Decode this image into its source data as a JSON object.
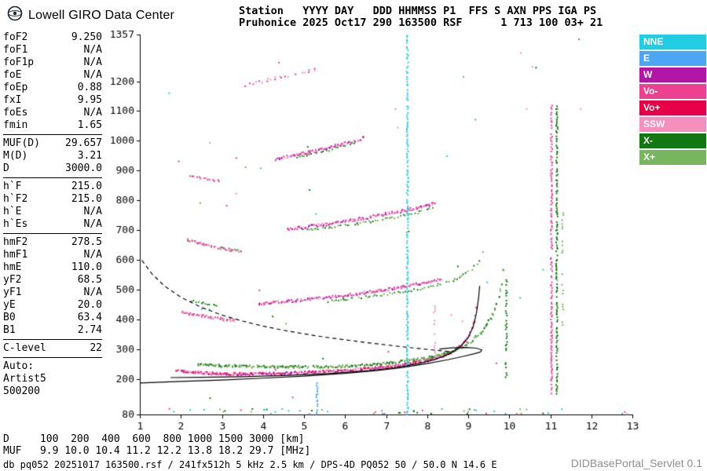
{
  "header": {
    "brand": "Lowell GIRO Data Center",
    "station_line1": "Station   YYYY DAY   DDD HHMMSS P1  FFS S AXN PPS IGA PS",
    "station_line2": "Pruhonice 2025 Oct17 290 163500 RSF      1 713 100 03+ 21"
  },
  "params": {
    "groups": [
      {
        "rows": [
          [
            "foF2",
            "9.250"
          ],
          [
            "foF1",
            "N/A"
          ],
          [
            "foF1p",
            "N/A"
          ],
          [
            "foE",
            "N/A"
          ],
          [
            "foEp",
            "0.88"
          ],
          [
            "fxI",
            "9.95"
          ],
          [
            "foEs",
            "N/A"
          ],
          [
            "fmin",
            "1.65"
          ]
        ]
      },
      {
        "rows": [
          [
            "MUF(D)",
            "29.657"
          ],
          [
            "M(D)",
            "3.21"
          ],
          [
            "D",
            "3000.0"
          ]
        ]
      },
      {
        "rows": [
          [
            "h`F",
            "215.0"
          ],
          [
            "h`F2",
            "215.0"
          ],
          [
            "h`E",
            "N/A"
          ],
          [
            "h`Es",
            "N/A"
          ]
        ]
      },
      {
        "rows": [
          [
            "hmF2",
            "278.5"
          ],
          [
            "hmF1",
            "N/A"
          ],
          [
            "hmE",
            "110.0"
          ],
          [
            "yF2",
            "68.5"
          ],
          [
            "yF1",
            "N/A"
          ],
          [
            "yE",
            "20.0"
          ],
          [
            "B0",
            "63.4"
          ],
          [
            "B1",
            "2.74"
          ]
        ]
      },
      {
        "rows": [
          [
            "C-level",
            "22"
          ]
        ]
      }
    ],
    "auto_label": "Auto:",
    "auto_lines": [
      "Artist5",
      "500200"
    ]
  },
  "legend": {
    "items": [
      {
        "label": "NNE",
        "color": "#22CCE2"
      },
      {
        "label": "E",
        "color": "#4DA6F5"
      },
      {
        "label": "W",
        "color": "#B215A8"
      },
      {
        "label": "Vo-",
        "color": "#EE4090"
      },
      {
        "label": "Vo+",
        "color": "#E60045"
      },
      {
        "label": "SSW",
        "color": "#F78FBE"
      },
      {
        "label": "X-",
        "color": "#117711"
      },
      {
        "label": "X+",
        "color": "#77B55F"
      }
    ]
  },
  "chart_data": {
    "type": "scatter",
    "x_unit": "MHz",
    "y_unit": "km",
    "xlim": [
      1,
      13
    ],
    "ylim": [
      80,
      1357
    ],
    "x_ticks": [
      1,
      2,
      3,
      4,
      5,
      6,
      7,
      8,
      9,
      10,
      11,
      12,
      13
    ],
    "y_ticks": [
      1357,
      1200,
      1100,
      1000,
      900,
      800,
      700,
      600,
      500,
      400,
      300,
      200,
      80
    ],
    "d_scale": {
      "label": "D",
      "values": [
        100,
        200,
        400,
        600,
        800,
        1000,
        1500,
        3000
      ],
      "unit": "[km]",
      "display": "D     100  200  400  600  800 1000 1500 3000 [km]"
    },
    "muf_scale": {
      "label": "MUF",
      "values": [
        9.9,
        10.0,
        10.4,
        11.2,
        12.2,
        13.8,
        18.2,
        29.7
      ],
      "unit": "[MHz]",
      "display": "MUF   9.9 10.0 10.4 11.2 12.2 13.8 18.2 29.7 [MHz]"
    },
    "key_values": {
      "foF2": 9.25,
      "fxI": 9.95,
      "hmF2": 278.5,
      "MUF3000": 29.657
    },
    "traces": [
      {
        "name": "F-1hop-O",
        "colors": [
          "#D63CA0",
          "#EE4090",
          "#B215A8",
          "#F78FBE",
          "#E60045"
        ],
        "step": 0.05,
        "jitter": 9,
        "density": 3,
        "points": [
          [
            1.9,
            228
          ],
          [
            2.3,
            222
          ],
          [
            2.8,
            218
          ],
          [
            3.5,
            216
          ],
          [
            4.2,
            217
          ],
          [
            5.0,
            221
          ],
          [
            5.8,
            226
          ],
          [
            6.5,
            233
          ],
          [
            7.1,
            241
          ],
          [
            7.6,
            251
          ],
          [
            8.0,
            262
          ],
          [
            8.35,
            276
          ],
          [
            8.65,
            294
          ],
          [
            8.9,
            320
          ],
          [
            9.05,
            352
          ],
          [
            9.15,
            392
          ],
          [
            9.21,
            438
          ],
          [
            9.25,
            495
          ]
        ]
      },
      {
        "name": "F-1hop-X",
        "colors": [
          "#117711",
          "#3E9933",
          "#77B55F"
        ],
        "step": 0.05,
        "jitter": 8,
        "density": 2,
        "points": [
          [
            2.4,
            248
          ],
          [
            3.0,
            244
          ],
          [
            3.8,
            241
          ],
          [
            4.6,
            240
          ],
          [
            5.4,
            240
          ],
          [
            6.1,
            243
          ],
          [
            6.8,
            249
          ],
          [
            7.4,
            258
          ],
          [
            7.9,
            268
          ],
          [
            8.4,
            283
          ],
          [
            8.8,
            302
          ],
          [
            9.1,
            328
          ],
          [
            9.35,
            360
          ],
          [
            9.55,
            402
          ],
          [
            9.7,
            452
          ],
          [
            9.82,
            520
          ],
          [
            9.9,
            615
          ]
        ]
      },
      {
        "name": "F-2hop-low-O",
        "colors": [
          "#D63CA0",
          "#EE4090",
          "#F78FBE"
        ],
        "step": 0.05,
        "jitter": 8,
        "density": 2,
        "points": [
          [
            2.05,
            424
          ],
          [
            2.4,
            414
          ],
          [
            2.75,
            406
          ],
          [
            3.1,
            399
          ],
          [
            3.35,
            395
          ]
        ]
      },
      {
        "name": "F-2hop-low-X",
        "colors": [
          "#117711",
          "#3E9933"
        ],
        "step": 0.06,
        "jitter": 6,
        "density": 1,
        "points": [
          [
            2.25,
            462
          ],
          [
            2.6,
            452
          ],
          [
            2.95,
            444
          ]
        ]
      },
      {
        "name": "F-2hop-O",
        "colors": [
          "#D63CA0",
          "#EE4090",
          "#B215A8",
          "#F78FBE"
        ],
        "step": 0.05,
        "jitter": 9,
        "density": 2,
        "points": [
          [
            3.9,
            452
          ],
          [
            4.4,
            458
          ],
          [
            4.9,
            464
          ],
          [
            5.4,
            471
          ],
          [
            5.9,
            479
          ],
          [
            6.4,
            488
          ],
          [
            6.9,
            498
          ],
          [
            7.4,
            509
          ],
          [
            7.8,
            519
          ],
          [
            8.15,
            529
          ],
          [
            8.4,
            537
          ]
        ]
      },
      {
        "name": "F-2hop-X",
        "colors": [
          "#117711",
          "#3E9933",
          "#77B55F"
        ],
        "step": 0.06,
        "jitter": 8,
        "density": 1,
        "points": [
          [
            5.6,
            462
          ],
          [
            6.2,
            470
          ],
          [
            6.8,
            480
          ],
          [
            7.4,
            492
          ],
          [
            8.0,
            506
          ],
          [
            8.5,
            523
          ],
          [
            8.85,
            543
          ],
          [
            9.1,
            568
          ],
          [
            9.3,
            604
          ],
          [
            9.42,
            650
          ]
        ]
      },
      {
        "name": "F-3hop-low",
        "colors": [
          "#D63CA0",
          "#EE4090",
          "#F78FBE",
          "#3E9933"
        ],
        "step": 0.05,
        "jitter": 8,
        "density": 2,
        "points": [
          [
            2.15,
            668
          ],
          [
            2.5,
            654
          ],
          [
            2.85,
            642
          ],
          [
            3.2,
            633
          ],
          [
            3.5,
            627
          ]
        ]
      },
      {
        "name": "F-3hop-O",
        "colors": [
          "#D63CA0",
          "#EE4090",
          "#B215A8",
          "#F78FBE"
        ],
        "step": 0.05,
        "jitter": 10,
        "density": 2,
        "points": [
          [
            4.6,
            703
          ],
          [
            5.1,
            711
          ],
          [
            5.6,
            720
          ],
          [
            6.1,
            731
          ],
          [
            6.6,
            743
          ],
          [
            7.1,
            756
          ],
          [
            7.6,
            770
          ],
          [
            8.0,
            783
          ],
          [
            8.25,
            792
          ]
        ]
      },
      {
        "name": "F-3hop-X",
        "colors": [
          "#117711",
          "#3E9933",
          "#77B55F"
        ],
        "step": 0.06,
        "jitter": 8,
        "density": 1,
        "points": [
          [
            5.0,
            700
          ],
          [
            5.7,
            710
          ],
          [
            6.4,
            723
          ],
          [
            7.1,
            739
          ],
          [
            7.7,
            757
          ],
          [
            8.2,
            775
          ]
        ]
      },
      {
        "name": "F-4hop-low",
        "colors": [
          "#D63CA0",
          "#EE4090"
        ],
        "step": 0.06,
        "jitter": 7,
        "density": 1,
        "points": [
          [
            2.2,
            884
          ],
          [
            2.6,
            872
          ],
          [
            3.0,
            862
          ]
        ]
      },
      {
        "name": "F-4hop-O",
        "colors": [
          "#D63CA0",
          "#EE4090",
          "#F78FBE",
          "#B215A8"
        ],
        "step": 0.05,
        "jitter": 9,
        "density": 2,
        "points": [
          [
            4.3,
            938
          ],
          [
            4.75,
            951
          ],
          [
            5.2,
            964
          ],
          [
            5.6,
            977
          ],
          [
            6.0,
            991
          ],
          [
            6.3,
            1002
          ],
          [
            6.5,
            1011
          ]
        ]
      },
      {
        "name": "F-4hop-X",
        "colors": [
          "#117711",
          "#3E9933"
        ],
        "step": 0.07,
        "jitter": 7,
        "density": 1,
        "points": [
          [
            4.8,
            945
          ],
          [
            5.4,
            962
          ],
          [
            5.9,
            980
          ],
          [
            6.3,
            996
          ]
        ]
      },
      {
        "name": "F-5hop",
        "colors": [
          "#D63CA0",
          "#EE4090",
          "#F78FBE"
        ],
        "step": 0.08,
        "jitter": 10,
        "density": 1,
        "points": [
          [
            3.6,
            1185
          ],
          [
            4.0,
            1200
          ],
          [
            4.4,
            1213
          ],
          [
            4.8,
            1224
          ],
          [
            5.1,
            1233
          ],
          [
            5.35,
            1242
          ]
        ]
      }
    ],
    "vlines": [
      {
        "name": "rfi-7.5MHz",
        "x": 7.52,
        "color": "#22CCE2",
        "y1": 80,
        "y2": 1357,
        "density": 0.85,
        "step": 6
      },
      {
        "name": "rfi-5.3MHz",
        "x": 5.32,
        "color": "#4DA6F5",
        "y1": 80,
        "y2": 195,
        "density": 0.7,
        "step": 7
      },
      {
        "name": "spread-8.2MHz",
        "x": 8.18,
        "color": "#F78FBE",
        "y1": 270,
        "y2": 455,
        "density": 0.5,
        "step": 8
      },
      {
        "name": "rfi-11.0MHz",
        "x": 11.03,
        "color": "#EE4090",
        "y1": 150,
        "y2": 1120,
        "density": 0.8,
        "step": 6
      },
      {
        "name": "rfi-11.2MHz",
        "x": 11.16,
        "color": "#117711",
        "y1": 150,
        "y2": 1120,
        "density": 0.8,
        "step": 6
      },
      {
        "name": "rfi-9.9MHz",
        "x": 9.93,
        "color": "#117711",
        "y1": 205,
        "y2": 535,
        "density": 0.6,
        "step": 7
      },
      {
        "name": "rfi-11.3MHz",
        "x": 11.3,
        "color": "#77B55F",
        "y1": 380,
        "y2": 760,
        "density": 0.35,
        "step": 9
      }
    ],
    "noise_bands": [
      {
        "name": "floor-noise",
        "count": 55,
        "x": [
          1.3,
          12.9
        ],
        "y": [
          81,
          100
        ],
        "colors": [
          "#22CCE2",
          "#117711",
          "#EE4090",
          "#77B55F",
          "#4DA6F5"
        ]
      },
      {
        "name": "sky-noise",
        "count": 45,
        "x": [
          1.2,
          12.9
        ],
        "y": [
          100,
          1350
        ],
        "colors": [
          "#EE4090",
          "#117711",
          "#22CCE2",
          "#4DA6F5",
          "#77B55F",
          "#F78FBE"
        ]
      }
    ],
    "curves": [
      {
        "name": "muf-transmission-curve",
        "style": "dashed",
        "color": "#000000",
        "points": [
          [
            1.05,
            598
          ],
          [
            1.3,
            552
          ],
          [
            1.6,
            512
          ],
          [
            2.0,
            474
          ],
          [
            2.5,
            440
          ],
          [
            3.0,
            414
          ],
          [
            3.5,
            394
          ],
          [
            4.0,
            377
          ],
          [
            4.5,
            363
          ],
          [
            5.0,
            351
          ],
          [
            5.5,
            340
          ],
          [
            6.0,
            331
          ],
          [
            6.5,
            322
          ],
          [
            7.0,
            314
          ],
          [
            7.5,
            306
          ],
          [
            8.0,
            299
          ],
          [
            8.35,
            294
          ],
          [
            8.65,
            290
          ]
        ]
      },
      {
        "name": "otrace-fit",
        "style": "solid",
        "color": "#000000",
        "points": [
          [
            1.75,
            204
          ],
          [
            2.5,
            205
          ],
          [
            3.5,
            207
          ],
          [
            4.5,
            211
          ],
          [
            5.5,
            217
          ],
          [
            6.5,
            226
          ],
          [
            7.2,
            237
          ],
          [
            7.8,
            251
          ],
          [
            8.2,
            265
          ],
          [
            8.55,
            284
          ],
          [
            8.8,
            307
          ],
          [
            9.0,
            338
          ],
          [
            9.12,
            375
          ],
          [
            9.2,
            420
          ],
          [
            9.25,
            468
          ],
          [
            9.28,
            512
          ]
        ]
      },
      {
        "name": "true-height-profile",
        "style": "solid",
        "color": "#000000",
        "points": [
          [
            1.0,
            186
          ],
          [
            2.0,
            191
          ],
          [
            3.0,
            196
          ],
          [
            4.0,
            202
          ],
          [
            5.0,
            209
          ],
          [
            6.0,
            218
          ],
          [
            6.8,
            228
          ],
          [
            7.4,
            238
          ],
          [
            8.0,
            251
          ],
          [
            8.5,
            264
          ],
          [
            8.9,
            276
          ],
          [
            9.15,
            284
          ],
          [
            9.3,
            290
          ]
        ]
      },
      {
        "name": "profile-nose",
        "style": "solid",
        "color": "#000000",
        "points": [
          [
            9.3,
            290
          ],
          [
            9.33,
            297
          ],
          [
            9.2,
            303
          ],
          [
            8.95,
            305
          ],
          [
            8.6,
            304
          ],
          [
            8.3,
            300
          ]
        ]
      }
    ]
  },
  "footer": {
    "info": "db pq052 20251017 163500.rsf / 241fx512h 5 kHz 2.5 km / DPS-4D PQ052 50 / 50.0 N 14.6 E",
    "servlet": "DIDBasePortal_Servlet 0.1"
  }
}
